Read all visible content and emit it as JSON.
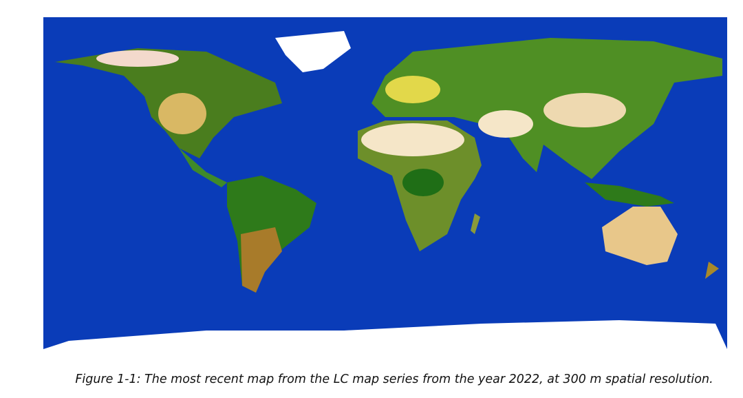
{
  "figure": {
    "caption": "Figure 1-1: The most recent map from the LC map series from the year 2022, at 300 m spatial resolution."
  }
}
